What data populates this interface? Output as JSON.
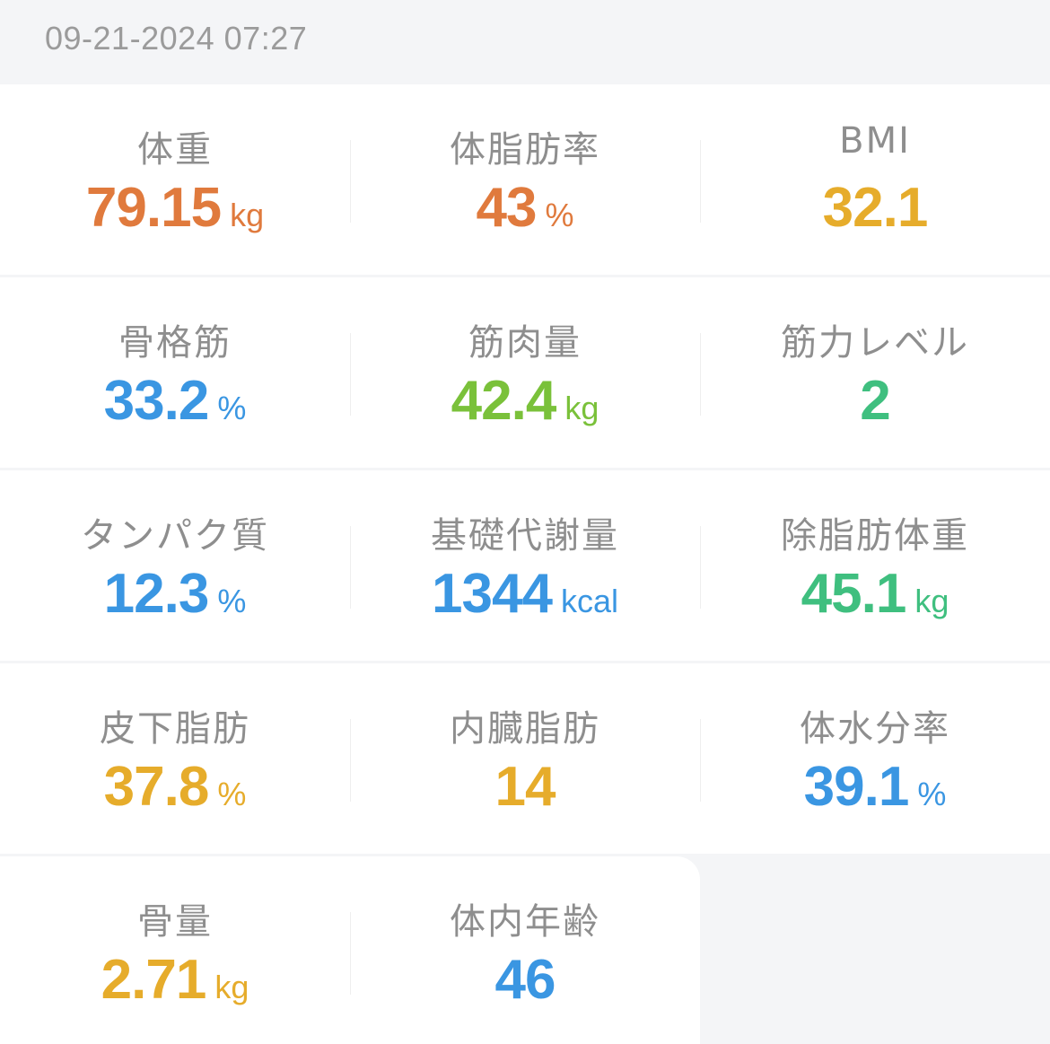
{
  "header": {
    "datetime": "09-21-2024 07:27"
  },
  "colors": {
    "orange": "#e07a3d",
    "yellow": "#e6ac2b",
    "blue": "#3a96e2",
    "lightgreen": "#7ac13a",
    "green": "#3fbf7f",
    "label": "#8e8e8e",
    "background": "#f4f5f7"
  },
  "metrics": [
    {
      "label": "体重",
      "value": "79.15",
      "unit": "kg",
      "color": "#e07a3d"
    },
    {
      "label": "体脂肪率",
      "value": "43",
      "unit": "%",
      "color": "#e07a3d"
    },
    {
      "label": "BMI",
      "value": "32.1",
      "unit": "",
      "color": "#e6ac2b"
    },
    {
      "label": "骨格筋",
      "value": "33.2",
      "unit": "%",
      "color": "#3a96e2"
    },
    {
      "label": "筋肉量",
      "value": "42.4",
      "unit": "kg",
      "color": "#7ac13a"
    },
    {
      "label": "筋力レベル",
      "value": "2",
      "unit": "",
      "color": "#3fbf7f"
    },
    {
      "label": "タンパク質",
      "value": "12.3",
      "unit": "%",
      "color": "#3a96e2"
    },
    {
      "label": "基礎代謝量",
      "value": "1344",
      "unit": "kcal",
      "color": "#3a96e2"
    },
    {
      "label": "除脂肪体重",
      "value": "45.1",
      "unit": "kg",
      "color": "#3fbf7f"
    },
    {
      "label": "皮下脂肪",
      "value": "37.8",
      "unit": "%",
      "color": "#e6ac2b"
    },
    {
      "label": "内臓脂肪",
      "value": "14",
      "unit": "",
      "color": "#e6ac2b"
    },
    {
      "label": "体水分率",
      "value": "39.1",
      "unit": "%",
      "color": "#3a96e2"
    },
    {
      "label": "骨量",
      "value": "2.71",
      "unit": "kg",
      "color": "#e6ac2b"
    },
    {
      "label": "体内年齢",
      "value": "46",
      "unit": "",
      "color": "#3a96e2"
    }
  ]
}
